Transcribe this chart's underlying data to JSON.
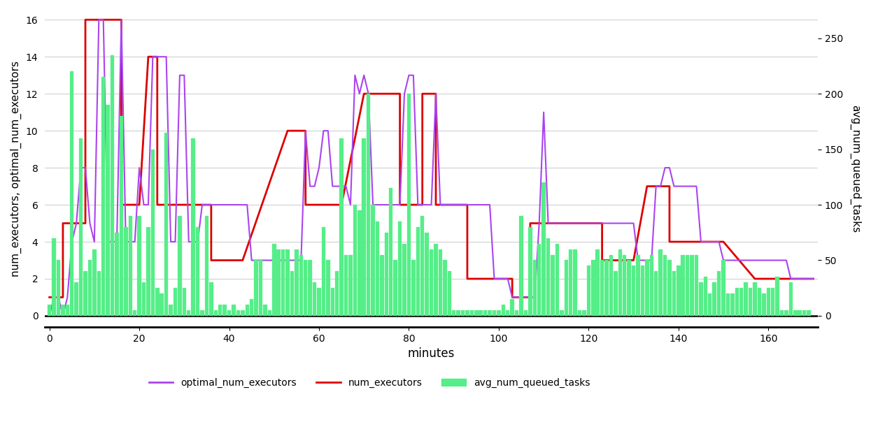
{
  "xlabel": "minutes",
  "ylabel_left": "num_executors, optimal_num_executors",
  "ylabel_right": "avg_num_queued_tasks",
  "xlim": [
    -1,
    171
  ],
  "ylim_left": [
    -0.6,
    16.5
  ],
  "ylim_right": [
    -10,
    275
  ],
  "yticks_left": [
    0,
    2,
    4,
    6,
    8,
    10,
    12,
    14,
    16
  ],
  "yticks_right": [
    0,
    50,
    100,
    150,
    200,
    250
  ],
  "xticks": [
    0,
    20,
    40,
    60,
    80,
    100,
    120,
    140,
    160
  ],
  "bg_color": "#ffffff",
  "grid_color": "#d0d0d0",
  "line_color_optimal": "#aa44ee",
  "line_color_num": "#dd0000",
  "bar_color": "#55ee88",
  "zero_line_color": "#000000",
  "num_executors_x": [
    0,
    3,
    3,
    8,
    8,
    11,
    11,
    16,
    16,
    20,
    20,
    22,
    22,
    24,
    24,
    32,
    32,
    36,
    36,
    43,
    43,
    53,
    53,
    57,
    57,
    65,
    65,
    70,
    70,
    78,
    78,
    83,
    83,
    86,
    86,
    88,
    88,
    93,
    93,
    103,
    103,
    107,
    107,
    110,
    110,
    113,
    113,
    123,
    123,
    130,
    130,
    133,
    133,
    138,
    138,
    150,
    150,
    157,
    157,
    170
  ],
  "num_executors_y": [
    1,
    1,
    5,
    5,
    16,
    16,
    16,
    16,
    6,
    6,
    6,
    14,
    14,
    14,
    6,
    6,
    6,
    6,
    3,
    3,
    3,
    10,
    10,
    10,
    6,
    6,
    6,
    12,
    12,
    12,
    6,
    6,
    12,
    12,
    6,
    6,
    6,
    6,
    2,
    2,
    1,
    1,
    5,
    5,
    5,
    5,
    5,
    5,
    3,
    3,
    3,
    7,
    7,
    7,
    4,
    4,
    4,
    2,
    2,
    2
  ],
  "optimal_x": [
    0,
    1,
    2,
    3,
    4,
    5,
    6,
    7,
    8,
    9,
    10,
    11,
    12,
    13,
    14,
    15,
    16,
    17,
    18,
    19,
    20,
    21,
    22,
    23,
    24,
    25,
    26,
    27,
    28,
    29,
    30,
    31,
    32,
    33,
    34,
    35,
    36,
    37,
    38,
    39,
    40,
    41,
    42,
    43,
    44,
    45,
    46,
    47,
    48,
    49,
    50,
    51,
    52,
    53,
    54,
    55,
    56,
    57,
    58,
    59,
    60,
    61,
    62,
    63,
    64,
    65,
    66,
    67,
    68,
    69,
    70,
    71,
    72,
    73,
    74,
    75,
    76,
    77,
    78,
    79,
    80,
    81,
    82,
    83,
    84,
    85,
    86,
    87,
    88,
    89,
    90,
    91,
    92,
    93,
    94,
    95,
    96,
    97,
    98,
    99,
    100,
    101,
    102,
    103,
    104,
    105,
    106,
    107,
    108,
    109,
    110,
    111,
    112,
    113,
    114,
    115,
    116,
    117,
    118,
    119,
    120,
    121,
    122,
    123,
    124,
    125,
    126,
    127,
    128,
    129,
    130,
    131,
    132,
    133,
    134,
    135,
    136,
    137,
    138,
    139,
    140,
    141,
    142,
    143,
    144,
    145,
    146,
    147,
    148,
    149,
    150,
    151,
    152,
    153,
    154,
    155,
    156,
    157,
    158,
    159,
    160,
    161,
    162,
    163,
    164,
    165,
    166,
    167,
    168,
    169,
    170
  ],
  "optimal_y": [
    0,
    1,
    1,
    0,
    1,
    4,
    5,
    8,
    8,
    5,
    4,
    16,
    16,
    4,
    4,
    4,
    16,
    4,
    4,
    4,
    8,
    6,
    6,
    14,
    14,
    14,
    14,
    4,
    4,
    13,
    13,
    4,
    4,
    4,
    6,
    6,
    6,
    6,
    6,
    6,
    6,
    6,
    6,
    6,
    6,
    3,
    3,
    3,
    3,
    3,
    3,
    3,
    3,
    3,
    3,
    3,
    3,
    10,
    7,
    7,
    8,
    10,
    10,
    7,
    7,
    7,
    7,
    6,
    13,
    12,
    13,
    12,
    6,
    6,
    6,
    6,
    6,
    6,
    6,
    12,
    13,
    13,
    6,
    6,
    6,
    6,
    12,
    6,
    6,
    6,
    6,
    6,
    6,
    6,
    6,
    6,
    6,
    6,
    6,
    2,
    2,
    2,
    2,
    1,
    1,
    1,
    1,
    1,
    1,
    5,
    11,
    5,
    5,
    5,
    5,
    5,
    5,
    5,
    5,
    5,
    5,
    5,
    5,
    5,
    5,
    5,
    5,
    5,
    5,
    5,
    5,
    3,
    3,
    3,
    3,
    7,
    7,
    8,
    8,
    7,
    7,
    7,
    7,
    7,
    7,
    4,
    4,
    4,
    4,
    4,
    3,
    3,
    3,
    3,
    3,
    3,
    3,
    3,
    3,
    3,
    3,
    3,
    3,
    3,
    3,
    2,
    2,
    2,
    2,
    2,
    2
  ],
  "bar_x": [
    0,
    1,
    2,
    3,
    4,
    5,
    6,
    7,
    8,
    9,
    10,
    11,
    12,
    13,
    14,
    15,
    16,
    17,
    18,
    19,
    20,
    21,
    22,
    23,
    24,
    25,
    26,
    27,
    28,
    29,
    30,
    31,
    32,
    33,
    34,
    35,
    36,
    37,
    38,
    39,
    40,
    41,
    42,
    43,
    44,
    45,
    46,
    47,
    48,
    49,
    50,
    51,
    52,
    53,
    54,
    55,
    56,
    57,
    58,
    59,
    60,
    61,
    62,
    63,
    64,
    65,
    66,
    67,
    68,
    69,
    70,
    71,
    72,
    73,
    74,
    75,
    76,
    77,
    78,
    79,
    80,
    81,
    82,
    83,
    84,
    85,
    86,
    87,
    88,
    89,
    90,
    91,
    92,
    93,
    94,
    95,
    96,
    97,
    98,
    99,
    100,
    101,
    102,
    103,
    104,
    105,
    106,
    107,
    108,
    109,
    110,
    111,
    112,
    113,
    114,
    115,
    116,
    117,
    118,
    119,
    120,
    121,
    122,
    123,
    124,
    125,
    126,
    127,
    128,
    129,
    130,
    131,
    132,
    133,
    134,
    135,
    136,
    137,
    138,
    139,
    140,
    141,
    142,
    143,
    144,
    145,
    146,
    147,
    148,
    149,
    150,
    151,
    152,
    153,
    154,
    155,
    156,
    157,
    158,
    159,
    160,
    161,
    162,
    163,
    164,
    165,
    166,
    167,
    168,
    169
  ],
  "bar_y": [
    10,
    70,
    50,
    10,
    10,
    220,
    30,
    160,
    40,
    50,
    60,
    40,
    215,
    190,
    235,
    75,
    180,
    80,
    90,
    5,
    90,
    30,
    80,
    150,
    25,
    20,
    165,
    10,
    25,
    90,
    25,
    5,
    160,
    80,
    5,
    90,
    30,
    5,
    10,
    10,
    5,
    10,
    5,
    5,
    10,
    15,
    50,
    50,
    10,
    5,
    65,
    60,
    60,
    60,
    40,
    60,
    55,
    50,
    50,
    30,
    25,
    80,
    50,
    25,
    40,
    160,
    55,
    55,
    100,
    95,
    160,
    200,
    100,
    85,
    55,
    75,
    115,
    50,
    85,
    65,
    200,
    50,
    80,
    90,
    75,
    60,
    65,
    60,
    50,
    40,
    5,
    5,
    5,
    5,
    5,
    5,
    5,
    5,
    5,
    5,
    5,
    10,
    5,
    15,
    5,
    90,
    5,
    80,
    50,
    65,
    120,
    70,
    55,
    65,
    5,
    50,
    60,
    60,
    5,
    5,
    45,
    50,
    60,
    50,
    50,
    55,
    40,
    60,
    55,
    50,
    45,
    55,
    45,
    50,
    55,
    40,
    60,
    55,
    50,
    40,
    45,
    55,
    55,
    55,
    55,
    30,
    35,
    20,
    30,
    40,
    50,
    20,
    20,
    25,
    25,
    30,
    25,
    30,
    25,
    20,
    25,
    25,
    35,
    5,
    5,
    30,
    5,
    5,
    5,
    5
  ]
}
